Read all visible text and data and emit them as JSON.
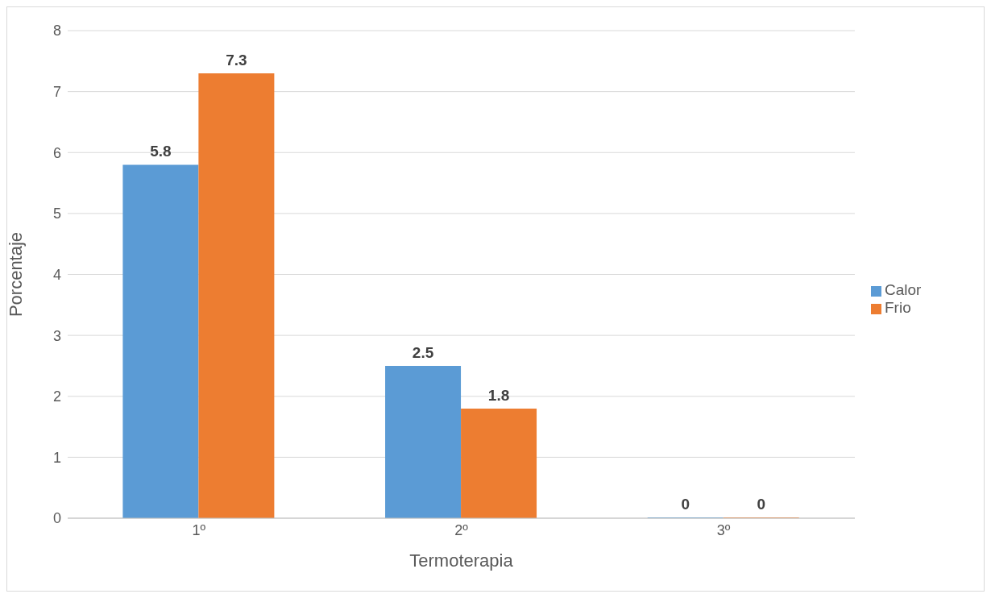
{
  "chart_data": {
    "type": "bar",
    "xlabel": "Termoterapia",
    "ylabel": "Porcentaje",
    "categories": [
      "1º",
      "2º",
      "3º"
    ],
    "series": [
      {
        "name": "Calor",
        "color": "#5b9bd5",
        "values": [
          5.8,
          2.5,
          0
        ]
      },
      {
        "name": "Frio",
        "color": "#ed7d31",
        "values": [
          7.3,
          1.8,
          0
        ]
      }
    ],
    "ylim": [
      0,
      8
    ],
    "yticks": [
      0,
      1,
      2,
      3,
      4,
      5,
      6,
      7,
      8
    ],
    "grid": "y",
    "legend": "right",
    "data_labels": true
  }
}
